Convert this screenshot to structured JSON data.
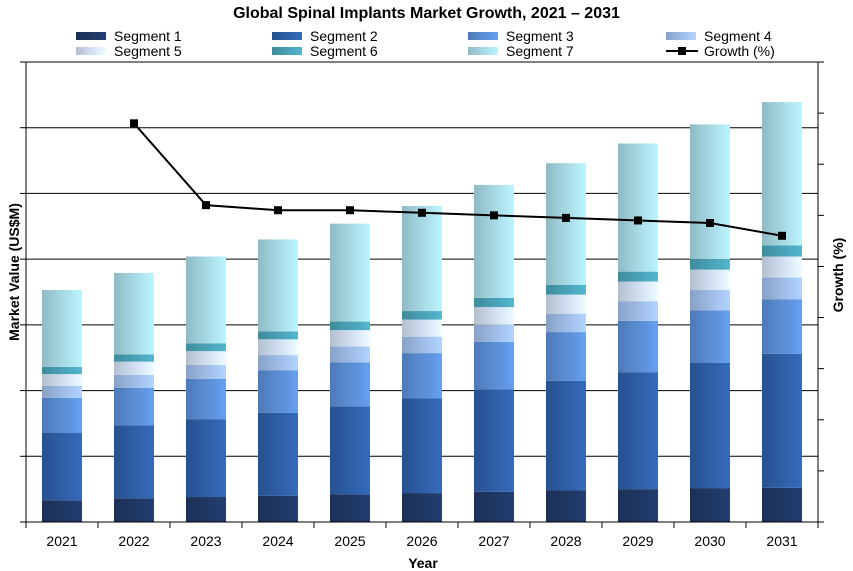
{
  "chart_data": {
    "type": "bar",
    "stacked": true,
    "title": "Global Spinal Implants Market Growth, 2021 – 2031",
    "xlabel": "Year",
    "ylabel": "Market Value (US$M)",
    "y2label": "Growth (%)",
    "categories": [
      "2021",
      "2022",
      "2023",
      "2024",
      "2025",
      "2026",
      "2027",
      "2028",
      "2029",
      "2030",
      "2031"
    ],
    "ylim": [
      0,
      7
    ],
    "y2lim": [
      0,
      9
    ],
    "grid": true,
    "legend_position": "top",
    "series": [
      {
        "name": "Segment 1",
        "color": "#1f3864",
        "values": [
          0.33,
          0.36,
          0.38,
          0.4,
          0.42,
          0.44,
          0.46,
          0.48,
          0.5,
          0.51,
          0.52
        ]
      },
      {
        "name": "Segment 2",
        "color": "#2f5fa8",
        "values": [
          1.03,
          1.11,
          1.18,
          1.26,
          1.34,
          1.44,
          1.56,
          1.67,
          1.78,
          1.91,
          2.04
        ]
      },
      {
        "name": "Segment 3",
        "color": "#5b8fd6",
        "values": [
          0.53,
          0.57,
          0.62,
          0.65,
          0.67,
          0.69,
          0.72,
          0.74,
          0.78,
          0.8,
          0.83
        ]
      },
      {
        "name": "Segment 4",
        "color": "#9fbde8",
        "values": [
          0.18,
          0.2,
          0.21,
          0.23,
          0.24,
          0.25,
          0.26,
          0.28,
          0.3,
          0.31,
          0.33
        ]
      },
      {
        "name": "Segment 5",
        "color": "#d3e1f4",
        "values": [
          0.18,
          0.2,
          0.21,
          0.24,
          0.25,
          0.26,
          0.27,
          0.29,
          0.3,
          0.31,
          0.32
        ]
      },
      {
        "name": "Segment 6",
        "color": "#4aa3b8",
        "values": [
          0.11,
          0.11,
          0.12,
          0.12,
          0.13,
          0.13,
          0.14,
          0.15,
          0.15,
          0.16,
          0.17
        ]
      },
      {
        "name": "Segment 7",
        "color": "#a8dbe6",
        "values": [
          1.17,
          1.24,
          1.32,
          1.4,
          1.49,
          1.6,
          1.72,
          1.85,
          1.95,
          2.05,
          2.18
        ]
      }
    ],
    "line_series": {
      "name": "Growth (%)",
      "color": "#000000",
      "axis": "right",
      "values": [
        null,
        7.8,
        6.2,
        6.1,
        6.1,
        6.05,
        6.0,
        5.95,
        5.9,
        5.85,
        5.6
      ]
    }
  }
}
